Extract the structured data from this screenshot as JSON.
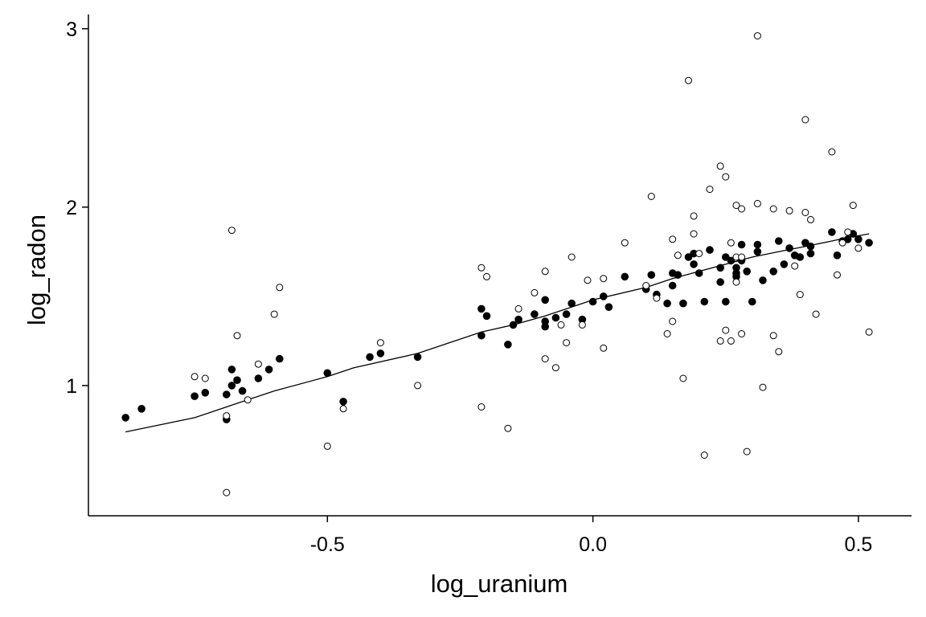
{
  "chart_data": {
    "type": "scatter",
    "title": "",
    "xlabel": "log_uranium",
    "ylabel": "log_radon",
    "xlim": [
      -0.95,
      0.6
    ],
    "ylim": [
      0.27,
      3.08
    ],
    "x_ticks": [
      -0.5,
      0.0,
      0.5
    ],
    "x_tick_labels": [
      "-0.5",
      "0.0",
      "0.5"
    ],
    "y_ticks": [
      1,
      2,
      3
    ],
    "y_tick_labels": [
      "1",
      "2",
      "3"
    ],
    "grid": false,
    "legend": "none",
    "series": [
      {
        "marker": "filled-circle",
        "points": [
          [
            -0.88,
            0.82
          ],
          [
            -0.85,
            0.87
          ],
          [
            -0.75,
            0.94
          ],
          [
            -0.73,
            0.96
          ],
          [
            -0.69,
            0.81
          ],
          [
            -0.69,
            0.95
          ],
          [
            -0.68,
            1.0
          ],
          [
            -0.68,
            1.09
          ],
          [
            -0.67,
            1.03
          ],
          [
            -0.66,
            0.97
          ],
          [
            -0.63,
            1.04
          ],
          [
            -0.61,
            1.09
          ],
          [
            -0.59,
            1.15
          ],
          [
            -0.5,
            1.07
          ],
          [
            -0.47,
            0.91
          ],
          [
            -0.42,
            1.16
          ],
          [
            -0.4,
            1.18
          ],
          [
            -0.33,
            1.16
          ],
          [
            -0.21,
            1.43
          ],
          [
            -0.21,
            1.28
          ],
          [
            -0.2,
            1.39
          ],
          [
            -0.16,
            1.23
          ],
          [
            -0.15,
            1.34
          ],
          [
            -0.14,
            1.37
          ],
          [
            -0.11,
            1.4
          ],
          [
            -0.09,
            1.36
          ],
          [
            -0.09,
            1.33
          ],
          [
            -0.09,
            1.48
          ],
          [
            -0.07,
            1.38
          ],
          [
            -0.05,
            1.4
          ],
          [
            -0.04,
            1.46
          ],
          [
            -0.02,
            1.37
          ],
          [
            0.0,
            1.47
          ],
          [
            0.02,
            1.5
          ],
          [
            0.03,
            1.44
          ],
          [
            0.06,
            1.61
          ],
          [
            0.1,
            1.54
          ],
          [
            0.11,
            1.62
          ],
          [
            0.12,
            1.51
          ],
          [
            0.14,
            1.46
          ],
          [
            0.15,
            1.56
          ],
          [
            0.15,
            1.63
          ],
          [
            0.16,
            1.62
          ],
          [
            0.17,
            1.46
          ],
          [
            0.18,
            1.72
          ],
          [
            0.19,
            1.68
          ],
          [
            0.19,
            1.74
          ],
          [
            0.2,
            1.63
          ],
          [
            0.21,
            1.47
          ],
          [
            0.22,
            1.76
          ],
          [
            0.24,
            1.66
          ],
          [
            0.24,
            1.58
          ],
          [
            0.25,
            1.47
          ],
          [
            0.25,
            1.72
          ],
          [
            0.26,
            1.7
          ],
          [
            0.27,
            1.61
          ],
          [
            0.27,
            1.66
          ],
          [
            0.27,
            1.63
          ],
          [
            0.28,
            1.79
          ],
          [
            0.28,
            1.7
          ],
          [
            0.29,
            1.64
          ],
          [
            0.3,
            1.47
          ],
          [
            0.31,
            1.79
          ],
          [
            0.31,
            1.75
          ],
          [
            0.32,
            1.59
          ],
          [
            0.34,
            1.64
          ],
          [
            0.35,
            1.81
          ],
          [
            0.36,
            1.68
          ],
          [
            0.37,
            1.77
          ],
          [
            0.38,
            1.73
          ],
          [
            0.39,
            1.72
          ],
          [
            0.4,
            1.8
          ],
          [
            0.41,
            1.78
          ],
          [
            0.41,
            1.74
          ],
          [
            0.45,
            1.86
          ],
          [
            0.46,
            1.73
          ],
          [
            0.47,
            1.81
          ],
          [
            0.48,
            1.82
          ],
          [
            0.49,
            1.85
          ],
          [
            0.5,
            1.82
          ],
          [
            0.52,
            1.8
          ]
        ]
      },
      {
        "marker": "open-circle",
        "points": [
          [
            -0.75,
            1.05
          ],
          [
            -0.73,
            1.04
          ],
          [
            -0.69,
            0.4
          ],
          [
            -0.69,
            0.83
          ],
          [
            -0.68,
            1.87
          ],
          [
            -0.67,
            1.28
          ],
          [
            -0.65,
            0.92
          ],
          [
            -0.63,
            1.12
          ],
          [
            -0.6,
            1.4
          ],
          [
            -0.59,
            1.55
          ],
          [
            -0.5,
            0.66
          ],
          [
            -0.47,
            0.87
          ],
          [
            -0.4,
            1.24
          ],
          [
            -0.33,
            1.0
          ],
          [
            -0.21,
            1.66
          ],
          [
            -0.21,
            0.88
          ],
          [
            -0.2,
            1.61
          ],
          [
            -0.16,
            0.76
          ],
          [
            -0.14,
            1.43
          ],
          [
            -0.11,
            1.52
          ],
          [
            -0.09,
            1.64
          ],
          [
            -0.09,
            1.15
          ],
          [
            -0.07,
            1.1
          ],
          [
            -0.06,
            1.34
          ],
          [
            -0.05,
            1.24
          ],
          [
            -0.04,
            1.72
          ],
          [
            -0.02,
            1.34
          ],
          [
            -0.01,
            1.59
          ],
          [
            0.02,
            1.6
          ],
          [
            0.02,
            1.21
          ],
          [
            0.06,
            1.8
          ],
          [
            0.1,
            1.56
          ],
          [
            0.11,
            2.06
          ],
          [
            0.12,
            1.49
          ],
          [
            0.14,
            1.29
          ],
          [
            0.15,
            1.36
          ],
          [
            0.15,
            1.82
          ],
          [
            0.16,
            1.73
          ],
          [
            0.17,
            1.04
          ],
          [
            0.18,
            2.71
          ],
          [
            0.19,
            1.85
          ],
          [
            0.19,
            1.95
          ],
          [
            0.2,
            1.74
          ],
          [
            0.21,
            0.61
          ],
          [
            0.22,
            2.1
          ],
          [
            0.24,
            2.23
          ],
          [
            0.24,
            1.25
          ],
          [
            0.25,
            2.17
          ],
          [
            0.25,
            1.31
          ],
          [
            0.26,
            1.8
          ],
          [
            0.26,
            1.25
          ],
          [
            0.27,
            1.72
          ],
          [
            0.27,
            1.58
          ],
          [
            0.27,
            2.01
          ],
          [
            0.28,
            1.99
          ],
          [
            0.28,
            1.29
          ],
          [
            0.28,
            1.72
          ],
          [
            0.29,
            0.63
          ],
          [
            0.31,
            2.02
          ],
          [
            0.31,
            2.96
          ],
          [
            0.32,
            0.99
          ],
          [
            0.34,
            1.28
          ],
          [
            0.34,
            1.99
          ],
          [
            0.35,
            1.19
          ],
          [
            0.37,
            1.98
          ],
          [
            0.38,
            1.67
          ],
          [
            0.39,
            1.51
          ],
          [
            0.4,
            1.97
          ],
          [
            0.4,
            2.49
          ],
          [
            0.41,
            1.93
          ],
          [
            0.42,
            1.4
          ],
          [
            0.45,
            2.31
          ],
          [
            0.46,
            1.62
          ],
          [
            0.47,
            1.8
          ],
          [
            0.48,
            1.86
          ],
          [
            0.49,
            2.01
          ],
          [
            0.5,
            1.77
          ],
          [
            0.52,
            1.3
          ]
        ]
      }
    ],
    "fit_line": {
      "points": [
        [
          -0.88,
          0.74
        ],
        [
          -0.75,
          0.82
        ],
        [
          -0.7,
          0.87
        ],
        [
          -0.68,
          0.89
        ],
        [
          -0.6,
          0.97
        ],
        [
          -0.5,
          1.05
        ],
        [
          -0.45,
          1.1
        ],
        [
          -0.33,
          1.18
        ],
        [
          -0.21,
          1.3
        ],
        [
          -0.15,
          1.34
        ],
        [
          -0.09,
          1.39
        ],
        [
          0.0,
          1.48
        ],
        [
          0.1,
          1.55
        ],
        [
          0.15,
          1.6
        ],
        [
          0.2,
          1.64
        ],
        [
          0.25,
          1.68
        ],
        [
          0.3,
          1.72
        ],
        [
          0.35,
          1.75
        ],
        [
          0.4,
          1.78
        ],
        [
          0.45,
          1.81
        ],
        [
          0.48,
          1.83
        ],
        [
          0.52,
          1.85
        ]
      ]
    }
  }
}
